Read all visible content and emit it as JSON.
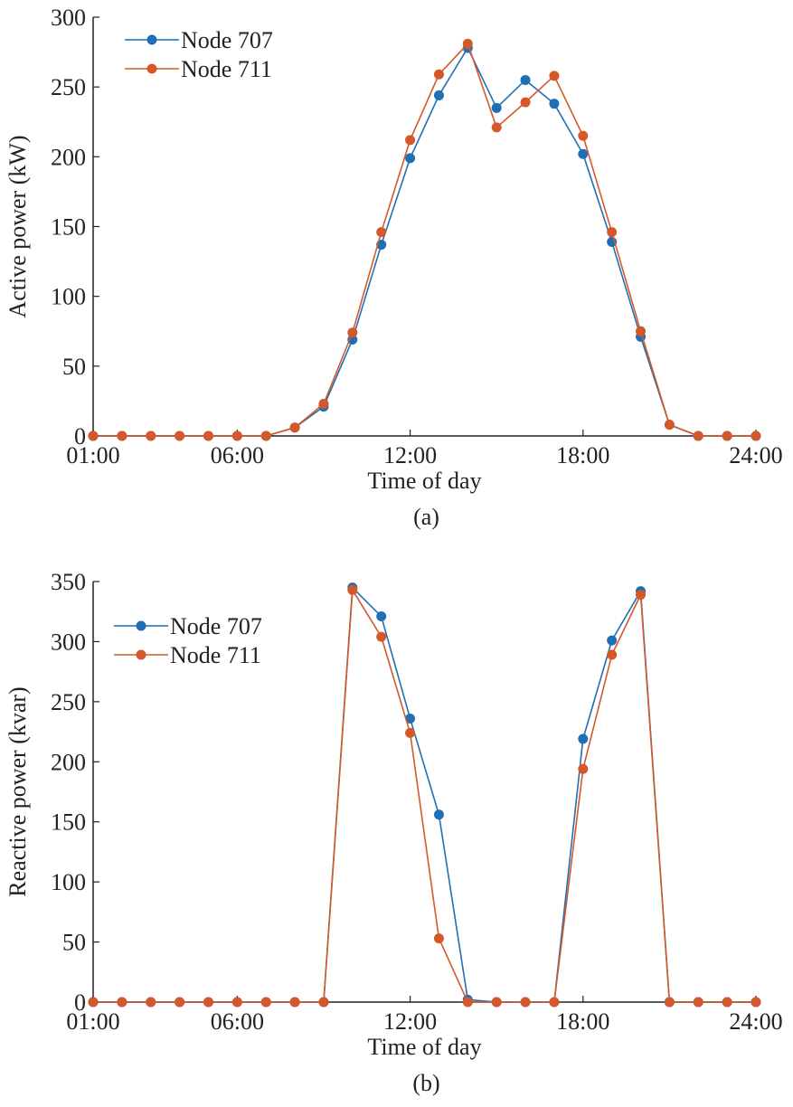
{
  "chart_data": [
    {
      "type": "line",
      "panel_label": "(a)",
      "xlabel": "Time of day",
      "ylabel": "Active power (kW)",
      "x": [
        1,
        2,
        3,
        4,
        5,
        6,
        7,
        8,
        9,
        10,
        11,
        12,
        13,
        14,
        15,
        16,
        17,
        18,
        19,
        20,
        21,
        22,
        23,
        24
      ],
      "xlim": [
        1,
        24
      ],
      "xticks": [
        1,
        6,
        12,
        18,
        24
      ],
      "xtick_labels": [
        "01:00",
        "06:00",
        "12:00",
        "18:00",
        "24:00"
      ],
      "ylim": [
        0,
        300
      ],
      "yticks": [
        0,
        50,
        100,
        150,
        200,
        250,
        300
      ],
      "ytick_labels": [
        "0",
        "50",
        "100",
        "150",
        "200",
        "250",
        "300"
      ],
      "grid": false,
      "legend_position": "top-left",
      "series": [
        {
          "name": "Node 707",
          "color": "#1f6fb4",
          "values": [
            0,
            0,
            0,
            0,
            0,
            0,
            0,
            6,
            21,
            69,
            137,
            199,
            244,
            278,
            235,
            255,
            238,
            202,
            139,
            71,
            8,
            0,
            0,
            0
          ]
        },
        {
          "name": "Node 711",
          "color": "#d4582a",
          "values": [
            0,
            0,
            0,
            0,
            0,
            0,
            0,
            6,
            23,
            74,
            146,
            212,
            259,
            281,
            221,
            239,
            258,
            215,
            146,
            75,
            8,
            0,
            0,
            0
          ]
        }
      ]
    },
    {
      "type": "line",
      "panel_label": "(b)",
      "xlabel": "Time of day",
      "ylabel": "Reactive power (kvar)",
      "x": [
        1,
        2,
        3,
        4,
        5,
        6,
        7,
        8,
        9,
        10,
        11,
        12,
        13,
        14,
        15,
        16,
        17,
        18,
        19,
        20,
        21,
        22,
        23,
        24
      ],
      "xlim": [
        1,
        24
      ],
      "xticks": [
        1,
        6,
        12,
        18,
        24
      ],
      "xtick_labels": [
        "01:00",
        "06:00",
        "12:00",
        "18:00",
        "24:00"
      ],
      "ylim": [
        0,
        350
      ],
      "yticks": [
        0,
        50,
        100,
        150,
        200,
        250,
        300,
        350
      ],
      "ytick_labels": [
        "0",
        "50",
        "100",
        "150",
        "200",
        "250",
        "300",
        "350"
      ],
      "grid": false,
      "legend_position": "top-left",
      "series": [
        {
          "name": "Node 707",
          "color": "#1f6fb4",
          "values": [
            0,
            0,
            0,
            0,
            0,
            0,
            0,
            0,
            0,
            345,
            321,
            236,
            156,
            2,
            0,
            0,
            0,
            219,
            301,
            342,
            0,
            0,
            0,
            0
          ]
        },
        {
          "name": "Node 711",
          "color": "#d4582a",
          "values": [
            0,
            0,
            0,
            0,
            0,
            0,
            0,
            0,
            0,
            343,
            304,
            224,
            53,
            0,
            0,
            0,
            0,
            194,
            289,
            339,
            0,
            0,
            0,
            0
          ]
        }
      ]
    }
  ]
}
